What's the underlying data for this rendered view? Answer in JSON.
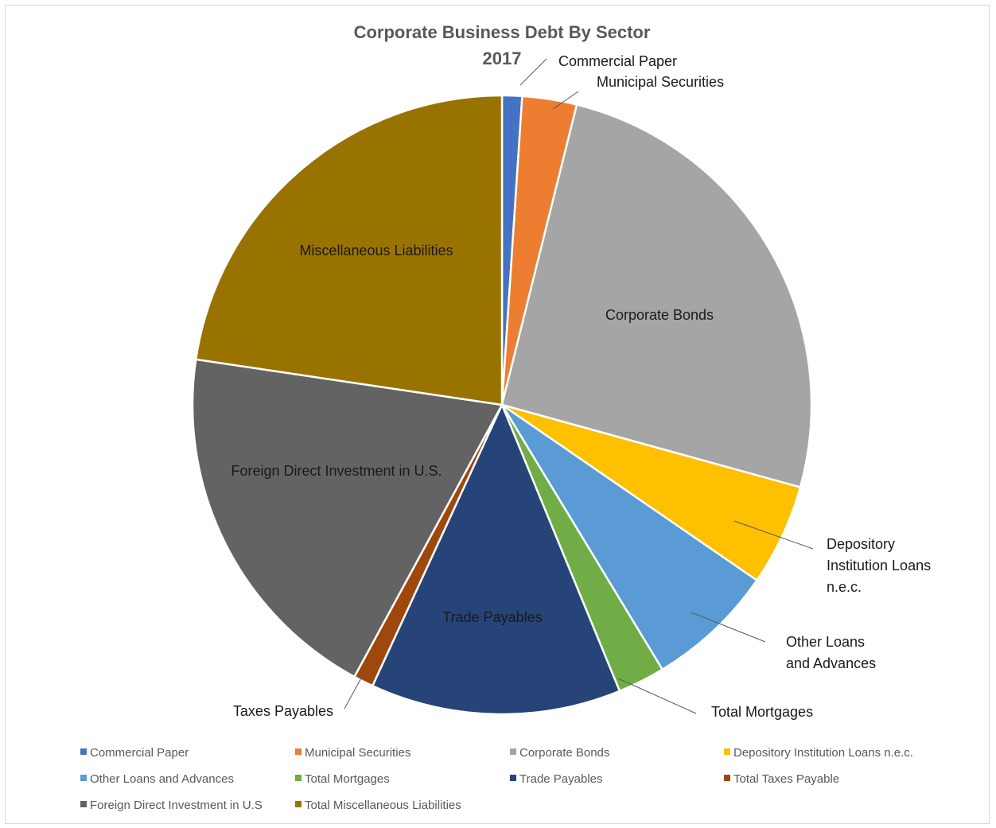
{
  "chart_data": {
    "type": "pie",
    "title": "Corporate Business Debt By Sector",
    "subtitle": "2017",
    "slices": [
      {
        "label": "Commercial Paper",
        "data_label": [
          "Commercial Paper"
        ],
        "legend": "Commercial Paper",
        "value": 1.1,
        "color": "#4472C4"
      },
      {
        "label": "Municipal Securities",
        "data_label": [
          "Municipal Securities"
        ],
        "legend": "Municipal Securities",
        "value": 3.0,
        "color": "#ED7D31"
      },
      {
        "label": "Corporate Bonds",
        "data_label": [
          "Corporate Bonds"
        ],
        "legend": "Corporate Bonds",
        "value": 26.8,
        "color": "#A5A5A5"
      },
      {
        "label": "Depository Institution Loans n.e.c.",
        "data_label": [
          "Depository",
          "Institution Loans",
          "n.e.c."
        ],
        "legend": "Depository Institution Loans n.e.c.",
        "value": 5.6,
        "color": "#FFC000"
      },
      {
        "label": "Other Loans and Advances",
        "data_label": [
          "Other Loans",
          "and Advances"
        ],
        "legend": "Other Loans and Advances",
        "value": 7.1,
        "color": "#5B9BD5"
      },
      {
        "label": "Total Mortgages",
        "data_label": [
          "Total Mortgages"
        ],
        "legend": "Total Mortgages",
        "value": 2.6,
        "color": "#70AD47"
      },
      {
        "label": "Trade Payables",
        "data_label": [
          "Trade Payables"
        ],
        "legend": "Trade Payables",
        "value": 13.8,
        "color": "#264478"
      },
      {
        "label": "Taxes Payables",
        "data_label": [
          "Taxes Payables"
        ],
        "legend": "Total Taxes Payable",
        "value": 1.1,
        "color": "#9E480E"
      },
      {
        "label": "Foreign Direct Investment in U.S.",
        "data_label": [
          "Foreign Direct Investment in U.S."
        ],
        "legend": "Foreign Direct Investment in U.S",
        "value": 20.5,
        "color": "#636363"
      },
      {
        "label": "Miscellaneous Liabilities",
        "data_label": [
          "Miscellaneous Liabilities"
        ],
        "legend": "Total Miscellaneous Liabilities",
        "value": 23.9,
        "color": "#997300"
      }
    ],
    "legend_position": "bottom"
  }
}
